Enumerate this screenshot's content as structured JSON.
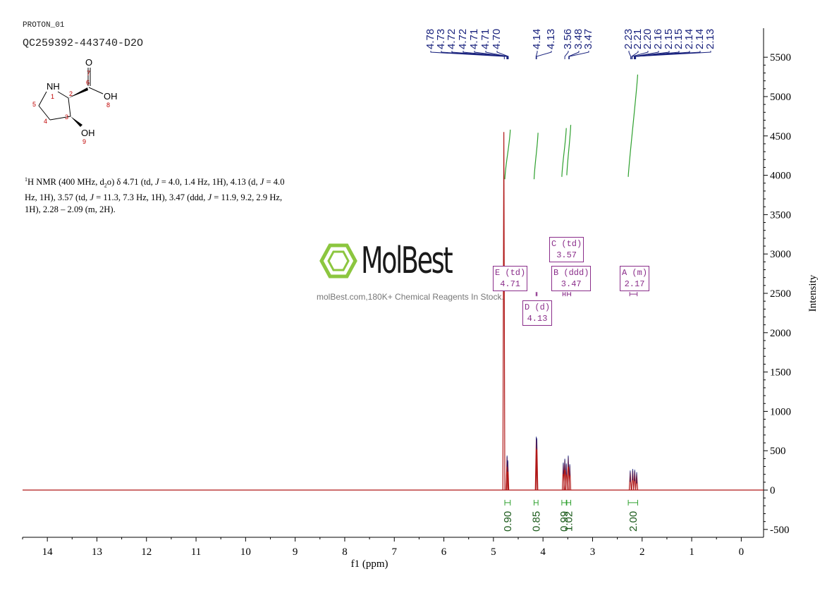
{
  "header": {
    "sample_tag": "PROTON_01",
    "sample_id": "QC259392-443740-D2O"
  },
  "structure": {
    "atoms": {
      "n1": "NH",
      "n1_num": "1",
      "c2_num": "2",
      "c3_num": "3",
      "c4_num": "4",
      "c5_num": "5",
      "c6_num": "6",
      "o7": "O",
      "o7_num": "7",
      "o8": "OH",
      "o8_num": "8",
      "o9": "OH",
      "o9_num": "9"
    }
  },
  "nmr_description": {
    "sup": "1",
    "text_a": "H NMR (400 MHz, d",
    "sub": "2",
    "text_b": "o) δ 4.71 (td, ",
    "j1": "J",
    "text_c": " = 4.0, 1.4 Hz, 1H), 4.13 (d, ",
    "j2": "J",
    "text_d": " = 4.0 Hz, 1H), 3.57 (td, ",
    "j3": "J",
    "text_e": " = 11.3, 7.3 Hz, 1H), 3.47 (ddd, ",
    "j4": "J",
    "text_f": " = 11.9, 9.2, 2.9 Hz, 1H), 2.28 – 2.09 (m, 2H)."
  },
  "watermark": {
    "name": "MolBest",
    "tagline": "molBest.com,180K+ Chemical Reagents In Stock."
  },
  "multiplets": [
    {
      "letter": "E",
      "type": "td",
      "shift": "4.71"
    },
    {
      "letter": "D",
      "type": "d",
      "shift": "4.13"
    },
    {
      "letter": "C",
      "type": "td",
      "shift": "3.57"
    },
    {
      "letter": "B",
      "type": "ddd",
      "shift": "3.47"
    },
    {
      "letter": "A",
      "type": "m",
      "shift": "2.17"
    }
  ],
  "colors": {
    "spectrum": "#b01818",
    "peak_labels": "#1a237e",
    "integral_curve": "#2ea02e",
    "integral_text": "#1a5a1a",
    "multiplet_box": "#8a2d8a"
  },
  "chart_data": {
    "type": "line",
    "title": "",
    "xlabel": "f1 (ppm)",
    "ylabel": "Intensity",
    "xlim": [
      14.5,
      -0.45
    ],
    "ylim": [
      -600,
      5600
    ],
    "x_ticks": [
      "14",
      "13",
      "12",
      "11",
      "10",
      "9",
      "8",
      "7",
      "6",
      "5",
      "4",
      "3",
      "2",
      "1",
      "0"
    ],
    "y_ticks": [
      "-500",
      "0",
      "500",
      "1000",
      "1500",
      "2000",
      "2500",
      "3000",
      "3500",
      "4000",
      "4500",
      "5000",
      "5500"
    ],
    "peaks": [
      {
        "ppm": 4.79,
        "intensity": 4550
      },
      {
        "ppm": 4.725,
        "intensity": 420
      },
      {
        "ppm": 4.71,
        "intensity": 360
      },
      {
        "ppm": 4.135,
        "intensity": 660
      },
      {
        "ppm": 4.125,
        "intensity": 640
      },
      {
        "ppm": 3.59,
        "intensity": 330
      },
      {
        "ppm": 3.56,
        "intensity": 380
      },
      {
        "ppm": 3.53,
        "intensity": 320
      },
      {
        "ppm": 3.49,
        "intensity": 420
      },
      {
        "ppm": 3.46,
        "intensity": 310
      },
      {
        "ppm": 2.24,
        "intensity": 230
      },
      {
        "ppm": 2.19,
        "intensity": 250
      },
      {
        "ppm": 2.15,
        "intensity": 240
      },
      {
        "ppm": 2.11,
        "intensity": 210
      }
    ],
    "peak_labels": [
      "4.78",
      "4.73",
      "4.72",
      "4.72",
      "4.71",
      "4.71",
      "4.70",
      "4.14",
      "4.13",
      "3.56",
      "3.48",
      "3.47",
      "2.23",
      "2.21",
      "2.20",
      "2.16",
      "2.15",
      "2.15",
      "2.14",
      "2.14",
      "2.13"
    ],
    "integrals": [
      {
        "from": 4.77,
        "to": 4.66,
        "value": "0.90",
        "curve_low": 3950,
        "curve_high": 4580
      },
      {
        "from": 4.18,
        "to": 4.1,
        "value": "0.85",
        "curve_low": 3950,
        "curve_high": 4540
      },
      {
        "from": 3.62,
        "to": 3.53,
        "value": "0.99",
        "curve_low": 3980,
        "curve_high": 4600
      },
      {
        "from": 3.52,
        "to": 3.44,
        "value": "1.02",
        "curve_low": 4000,
        "curve_high": 4640
      },
      {
        "from": 2.28,
        "to": 2.09,
        "value": "2.00",
        "curve_low": 3980,
        "curve_high": 5280
      }
    ]
  }
}
